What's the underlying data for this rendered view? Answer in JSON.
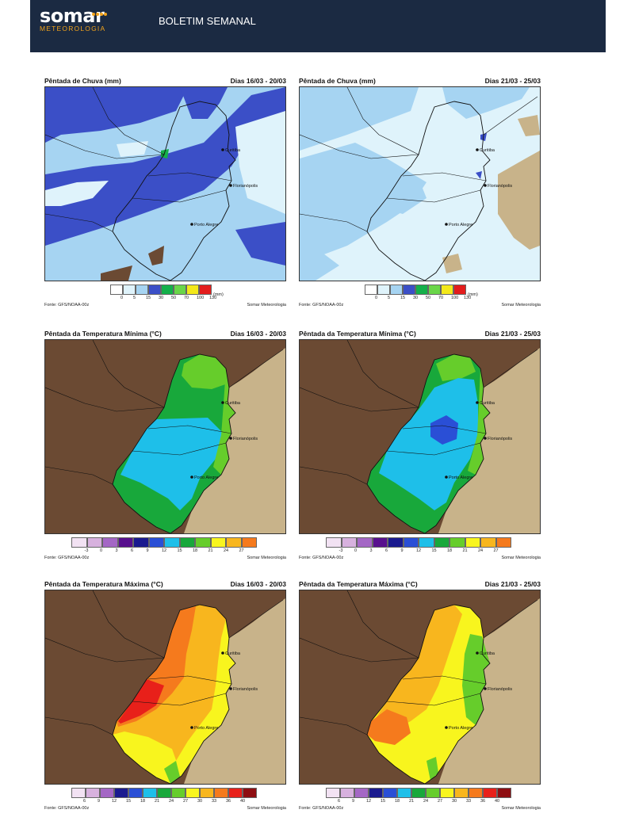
{
  "header": {
    "brand": "somar",
    "brand_sub": "METEOROLOGIA",
    "title": "BOLETIM SEMANAL"
  },
  "cities": [
    "Curitiba",
    "Florianópolis",
    "Porto Alegre"
  ],
  "source_label": "Fonte: GFS/NOAA-00z",
  "credit_label": "Somar Meteorologia",
  "rain_scale": {
    "ticks": [
      "0",
      "5",
      "15",
      "30",
      "50",
      "70",
      "100",
      "130"
    ],
    "unit": "(mm)",
    "colors": [
      "#ffffff",
      "#dff3fb",
      "#a6d4f2",
      "#3b4fc7",
      "#14b04a",
      "#6ad649",
      "#f3e81a",
      "#e31c1c"
    ]
  },
  "tmin_scale": {
    "ticks": [
      "-3",
      "0",
      "3",
      "6",
      "9",
      "12",
      "15",
      "18",
      "21",
      "24",
      "27"
    ],
    "colors": [
      "#f2e2f3",
      "#d7b1de",
      "#a467c5",
      "#58108e",
      "#1a1a8f",
      "#2a4fd6",
      "#1ebfe9",
      "#18a83b",
      "#66cd2b",
      "#f8f51e",
      "#f8b61e",
      "#f57a1d"
    ]
  },
  "tmax_scale": {
    "ticks": [
      "6",
      "9",
      "12",
      "15",
      "18",
      "21",
      "24",
      "27",
      "30",
      "33",
      "36",
      "40"
    ],
    "colors": [
      "#f2e2f3",
      "#d7b1de",
      "#a467c5",
      "#1a1a8f",
      "#2a4fd6",
      "#1ebfe9",
      "#18a83b",
      "#66cd2b",
      "#f8f51e",
      "#f8b61e",
      "#f57a1d",
      "#e8201a",
      "#8e0e12"
    ]
  },
  "panels": [
    {
      "title": "Pêntada de Chuva (mm)",
      "dates": "Dias 16/03 - 20/03"
    },
    {
      "title": "Pêntada de Chuva (mm)",
      "dates": "Dias 21/03 - 25/03"
    },
    {
      "title": "Pêntada da Temperatura Mínima (°C)",
      "dates": "Dias 16/03 - 20/03"
    },
    {
      "title": "Pêntada da Temperatura Mínima (°C)",
      "dates": "Dias 21/03 - 25/03"
    },
    {
      "title": "Pêntada da Temperatura Máxima (°C)",
      "dates": "Dias 16/03 - 20/03"
    },
    {
      "title": "Pêntada da Temperatura Máxima (°C)",
      "dates": "Dias 21/03 - 25/03"
    }
  ]
}
